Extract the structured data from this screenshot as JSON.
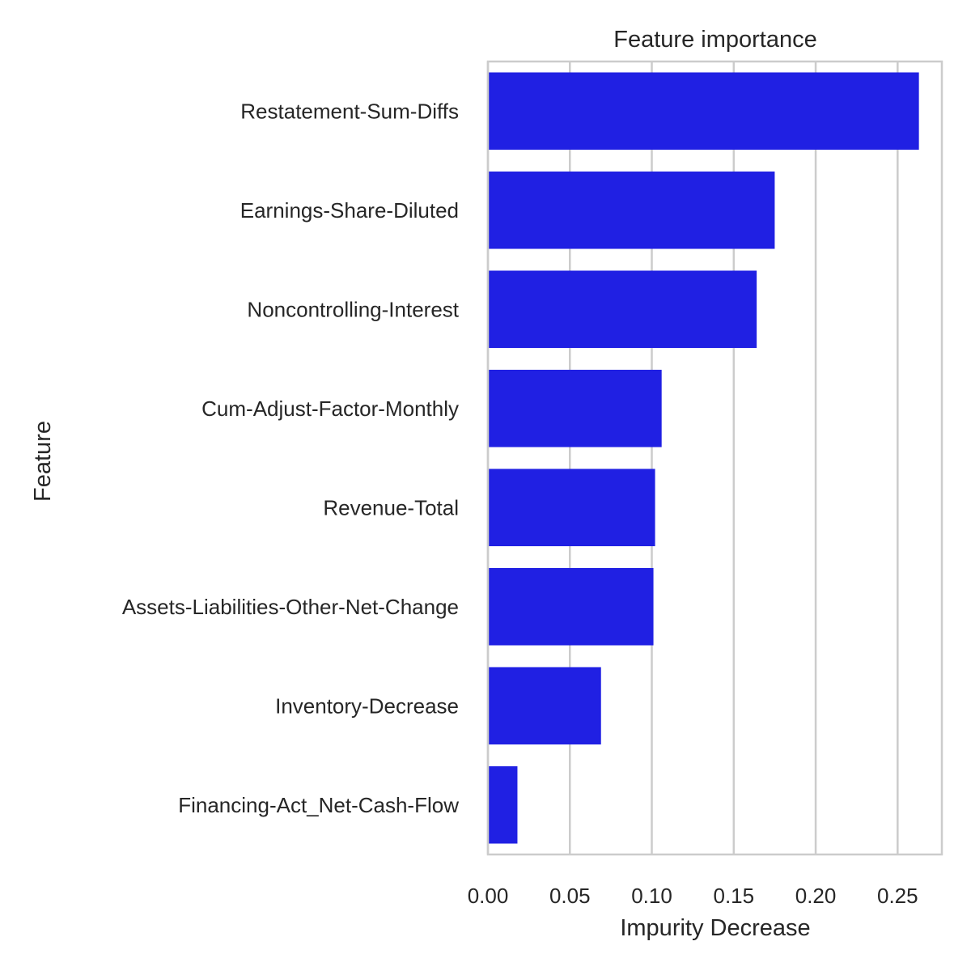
{
  "chart_data": {
    "type": "bar",
    "orientation": "horizontal",
    "title": "Feature importance",
    "xlabel": "Impurity Decrease",
    "ylabel": "Feature",
    "categories": [
      "Restatement-Sum-Diffs",
      "Earnings-Share-Diluted",
      "Noncontrolling-Interest",
      "Cum-Adjust-Factor-Monthly",
      "Revenue-Total",
      "Assets-Liabilities-Other-Net-Change",
      "Inventory-Decrease",
      "Financing-Act_Net-Cash-Flow"
    ],
    "values": [
      0.263,
      0.175,
      0.164,
      0.106,
      0.102,
      0.101,
      0.069,
      0.018
    ],
    "xlim": [
      0,
      0.277
    ],
    "xticks": [
      "0.00",
      "0.05",
      "0.10",
      "0.15",
      "0.20",
      "0.25"
    ],
    "xtick_values": [
      0,
      0.05,
      0.1,
      0.15,
      0.2,
      0.25
    ],
    "grid": "x",
    "bar_color": "#2020e3",
    "grid_color": "#cccccc",
    "frame_color": "#cccccc"
  }
}
